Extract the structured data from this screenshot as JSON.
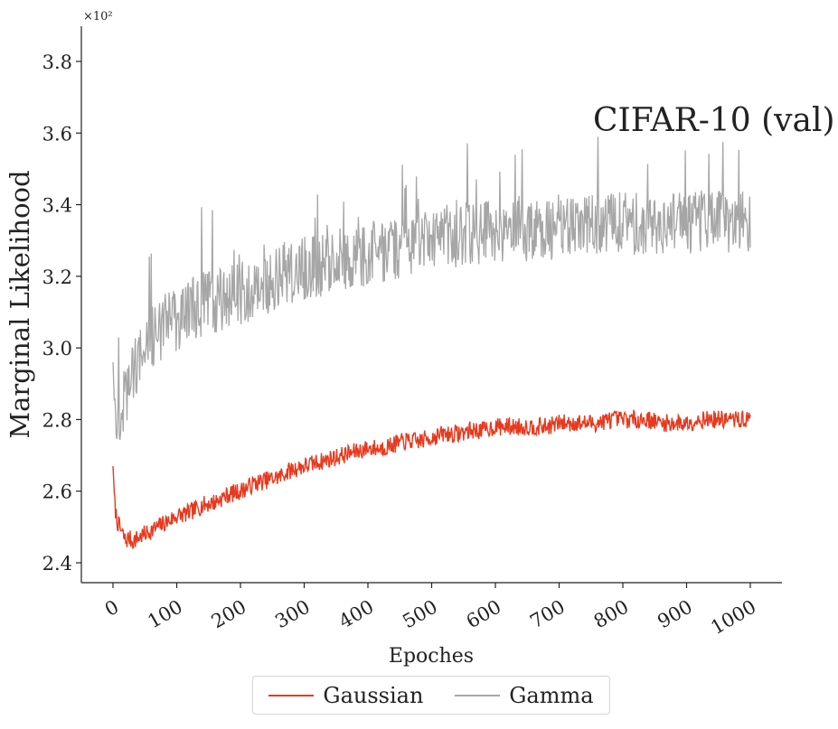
{
  "chart_data": {
    "type": "line",
    "title": "",
    "annotation": "CIFAR-10 (val)",
    "xlabel": "Epoches",
    "ylabel": "Marginal Likelihood",
    "y_multiplier_label": "×10²",
    "xlim": [
      -50,
      1050
    ],
    "ylim": [
      2.35,
      3.9
    ],
    "x_ticks": [
      0,
      100,
      200,
      300,
      400,
      500,
      600,
      700,
      800,
      900,
      1000
    ],
    "x_tick_labels": [
      "0",
      "100",
      "200",
      "300",
      "400",
      "500",
      "600",
      "700",
      "800",
      "900",
      "1000"
    ],
    "y_ticks": [
      2.4,
      2.6,
      2.8,
      3.0,
      3.2,
      3.4,
      3.6,
      3.8
    ],
    "y_tick_labels": [
      "2.4",
      "2.6",
      "2.8",
      "3.0",
      "3.2",
      "3.4",
      "3.6",
      "3.8"
    ],
    "grid": false,
    "legend_position": "bottom-center",
    "series": [
      {
        "name": "Gaussian",
        "color": "#e8391e",
        "x": [
          0,
          3,
          6,
          10,
          15,
          20,
          25,
          30,
          40,
          50,
          60,
          70,
          80,
          100,
          120,
          140,
          160,
          180,
          200,
          220,
          240,
          260,
          280,
          300,
          320,
          340,
          360,
          380,
          400,
          420,
          440,
          460,
          480,
          500,
          520,
          540,
          560,
          580,
          600,
          620,
          640,
          660,
          680,
          700,
          720,
          740,
          760,
          780,
          800,
          820,
          840,
          860,
          880,
          900,
          920,
          940,
          960,
          980,
          1000
        ],
        "values": [
          2.67,
          2.56,
          2.52,
          2.5,
          2.48,
          2.46,
          2.47,
          2.46,
          2.47,
          2.48,
          2.49,
          2.5,
          2.51,
          2.53,
          2.54,
          2.56,
          2.57,
          2.59,
          2.6,
          2.62,
          2.63,
          2.64,
          2.66,
          2.67,
          2.68,
          2.69,
          2.7,
          2.71,
          2.72,
          2.72,
          2.73,
          2.74,
          2.74,
          2.75,
          2.76,
          2.76,
          2.77,
          2.77,
          2.78,
          2.78,
          2.78,
          2.78,
          2.78,
          2.79,
          2.79,
          2.79,
          2.79,
          2.8,
          2.8,
          2.8,
          2.8,
          2.79,
          2.79,
          2.79,
          2.8,
          2.8,
          2.8,
          2.8,
          2.8
        ],
        "noise": 0.025
      },
      {
        "name": "Gamma",
        "color": "#a6a6a6",
        "x": [
          0,
          3,
          6,
          10,
          15,
          20,
          30,
          40,
          50,
          60,
          70,
          80,
          100,
          120,
          140,
          160,
          180,
          200,
          220,
          240,
          260,
          280,
          300,
          320,
          340,
          360,
          380,
          400,
          420,
          440,
          460,
          480,
          500,
          520,
          540,
          560,
          580,
          600,
          620,
          640,
          660,
          680,
          700,
          720,
          740,
          760,
          780,
          800,
          820,
          840,
          860,
          880,
          900,
          920,
          940,
          960,
          980,
          1000
        ],
        "values": [
          2.96,
          2.8,
          2.76,
          2.8,
          2.84,
          2.87,
          2.92,
          2.97,
          3.0,
          3.03,
          3.05,
          3.06,
          3.08,
          3.1,
          3.12,
          3.13,
          3.14,
          3.15,
          3.17,
          3.18,
          3.2,
          3.21,
          3.22,
          3.23,
          3.24,
          3.25,
          3.25,
          3.26,
          3.27,
          3.28,
          3.29,
          3.29,
          3.3,
          3.31,
          3.31,
          3.32,
          3.32,
          3.32,
          3.33,
          3.33,
          3.33,
          3.33,
          3.34,
          3.34,
          3.34,
          3.35,
          3.35,
          3.35,
          3.35,
          3.35,
          3.35,
          3.35,
          3.35,
          3.35,
          3.35,
          3.35,
          3.35,
          3.35
        ],
        "noise": 0.09
      }
    ]
  }
}
